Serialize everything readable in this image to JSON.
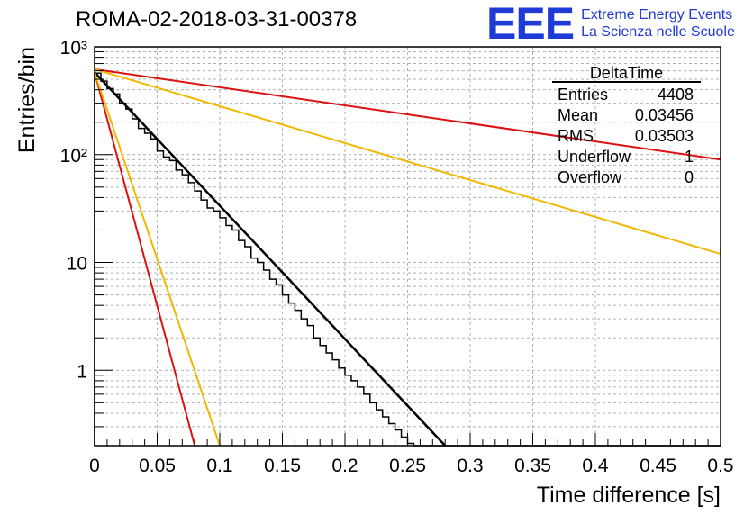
{
  "title": "ROMA-02-2018-03-31-00378",
  "logo": {
    "mark": "EEE",
    "line1": "Extreme Energy Events",
    "line2": "La Scienza nelle Scuole"
  },
  "stats": {
    "name": "DeltaTime",
    "rows": [
      {
        "label": "Entries",
        "value": "4408"
      },
      {
        "label": "Mean",
        "value": "0.03456"
      },
      {
        "label": "RMS",
        "value": "0.03503"
      },
      {
        "label": "Underflow",
        "value": "1"
      },
      {
        "label": "Overflow",
        "value": "0"
      }
    ]
  },
  "chart_data": {
    "type": "line",
    "title": "ROMA-02-2018-03-31-00378",
    "xlabel": "Time difference [s]",
    "ylabel": "Entries/bin",
    "xlim": [
      0,
      0.5
    ],
    "ylim": [
      0.2,
      1000
    ],
    "ylog": true,
    "grid": true,
    "x_ticks": [
      0,
      0.05,
      0.1,
      0.15,
      0.2,
      0.25,
      0.3,
      0.35,
      0.4,
      0.45,
      0.5
    ],
    "x_tick_labels": [
      "0",
      "0.05",
      "0.1",
      "0.15",
      "0.2",
      "0.25",
      "0.3",
      "0.35",
      "0.4",
      "0.45",
      "0.5"
    ],
    "y_ticks": [
      1,
      10,
      100,
      1000
    ],
    "y_tick_labels": [
      "1",
      "10",
      "10²",
      "10³"
    ],
    "histogram": {
      "bin_width": 0.005,
      "x_start": 0,
      "values": [
        570,
        480,
        410,
        365,
        300,
        265,
        215,
        175,
        158,
        140,
        108,
        95,
        88,
        72,
        65,
        55,
        46,
        38,
        32,
        30,
        26,
        22,
        20,
        16,
        14,
        11,
        10,
        8.5,
        7,
        6.2,
        5,
        4.2,
        3.6,
        3.0,
        2.6,
        2.0,
        1.7,
        1.45,
        1.25,
        1.05,
        0.9,
        0.8,
        0.7,
        0.6,
        0.5,
        0.43,
        0.37,
        0.32,
        0.28,
        0.24,
        0.21,
        0.2,
        0.2,
        0.2,
        0.2,
        0.2,
        0.2,
        0.2,
        0.2,
        0.2,
        0.2,
        0.2,
        0.2,
        0.2,
        0.2,
        0.2,
        0.2,
        0.2,
        0.2,
        0.2,
        0.2,
        0.2,
        0.2,
        0.2,
        0.2,
        0.2,
        0.2,
        0.2,
        0.2,
        0.2,
        0.2,
        0.2,
        0.2,
        0.2,
        0.2,
        0.2,
        0.2,
        0.2,
        0.2,
        0.2,
        0.2,
        0.2,
        0.2,
        0.2,
        0.2,
        0.2,
        0.2,
        0.2,
        0.2,
        0.2
      ],
      "color": "#000000"
    },
    "series": [
      {
        "color": "#000000",
        "x": [
          0,
          0.28
        ],
        "y": [
          580,
          0.2
        ]
      },
      {
        "color": "#dd1111",
        "x": [
          0,
          0.08
        ],
        "y": [
          580,
          0.2
        ]
      },
      {
        "color": "#f2b800",
        "x": [
          0,
          0.1
        ],
        "y": [
          580,
          0.2
        ]
      },
      {
        "color": "#dd1111",
        "x": [
          0,
          0.5
        ],
        "y": [
          620,
          90
        ]
      },
      {
        "color": "#f2b800",
        "x": [
          0,
          0.5
        ],
        "y": [
          620,
          12
        ]
      }
    ]
  }
}
